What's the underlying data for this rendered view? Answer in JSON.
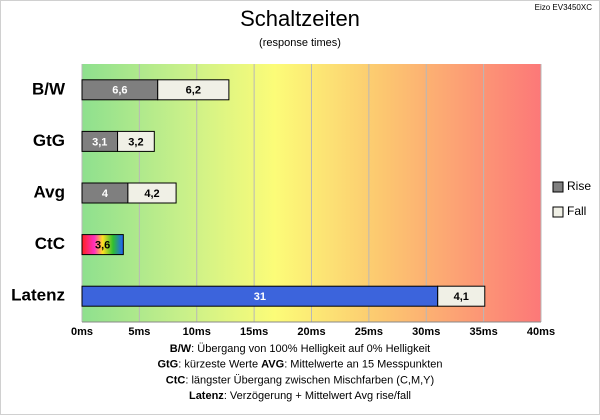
{
  "chart_data": {
    "type": "hbar_stacked",
    "title": "Schaltzeiten",
    "subtitle": "(response times)",
    "corner_label": "Eizo EV3450XC",
    "categories": [
      "B/W",
      "GtG",
      "Avg",
      "CtC",
      "Latenz"
    ],
    "series": [
      {
        "name": "Rise",
        "color": "#7f7f7f",
        "colors": [
          "#7f7f7f",
          "#7f7f7f",
          "#7f7f7f",
          "rainbow",
          "#3c64dc"
        ],
        "values": [
          6.6,
          3.1,
          4,
          3.6,
          31
        ],
        "value_labels": [
          "6,6",
          "3,1",
          "4",
          "3,6",
          "31"
        ]
      },
      {
        "name": "Fall",
        "color": "#f0f0e6",
        "values": [
          6.2,
          3.2,
          4.2,
          null,
          4.1
        ],
        "value_labels": [
          "6,2",
          "3,2",
          "4,2",
          null,
          "4,1"
        ]
      }
    ],
    "xlim": [
      0,
      40
    ],
    "xticks": [
      {
        "value": 0,
        "label": "0ms"
      },
      {
        "value": 5,
        "label": "5ms"
      },
      {
        "value": 10,
        "label": "10ms"
      },
      {
        "value": 15,
        "label": "15ms"
      },
      {
        "value": 20,
        "label": "20ms"
      },
      {
        "value": 25,
        "label": "25ms"
      },
      {
        "value": 30,
        "label": "30ms"
      },
      {
        "value": 35,
        "label": "35ms"
      },
      {
        "value": 40,
        "label": "40ms"
      }
    ],
    "grid": true,
    "legend": "right",
    "notes": [
      [
        {
          "label": "B/W",
          "text": ":  Übergang von 100% Helligkeit auf 0% Helligkeit"
        }
      ],
      [
        {
          "label": "GtG",
          "text": ": kürzeste  Werte       "
        },
        {
          "label": "AVG",
          "text": ": Mittelwerte  an 15 Messpunkten"
        }
      ],
      [
        {
          "label": "CtC",
          "text": ": längster Übergang  zwischen Mischfarben  (C,M,Y)"
        }
      ],
      [
        {
          "label": "Latenz",
          "text": ": Verzögerung  + Mittelwert Avg rise/fall"
        }
      ]
    ]
  }
}
